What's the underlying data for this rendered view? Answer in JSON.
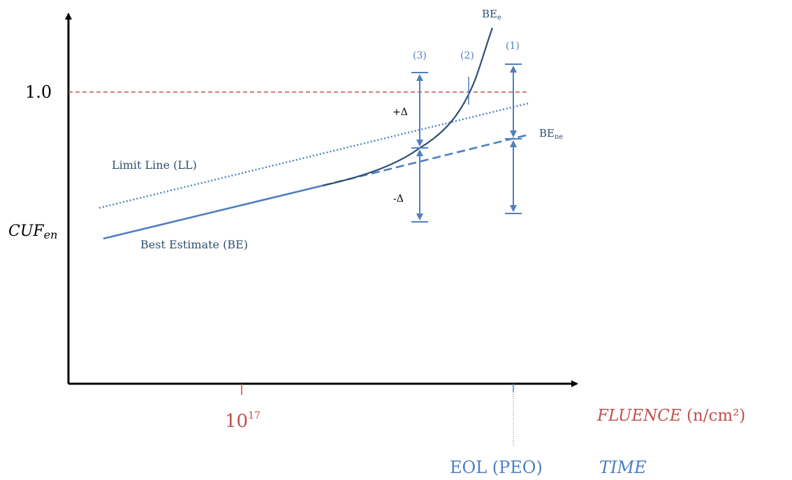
{
  "colors": {
    "axis": "#000000",
    "blue": "#4f7fbf",
    "dark_blue": "#2f4f72",
    "red": "#c0504d",
    "text_blue": "#2f4f72"
  },
  "labels": {
    "y_tick_1": "1.0",
    "y_axis_main": "CUF",
    "y_axis_sub": "en",
    "x_tick_base": "10",
    "x_tick_exp": "17",
    "fluence": "FLUENCE",
    "fluence_unit": " (n/cm²)",
    "eol": "EOL (PEO)",
    "time": "TIME",
    "be_e_main": "BE",
    "be_e_sub": "e",
    "be_ne_main": "BE",
    "be_ne_sub": "ne",
    "limit_line": "Limit Line (LL)",
    "best_estimate": "Best Estimate (BE)",
    "plus_delta": "+Δ",
    "minus_delta": "-Δ",
    "case_1": "(1)",
    "case_2": "(2)",
    "case_3": "(3)"
  }
}
